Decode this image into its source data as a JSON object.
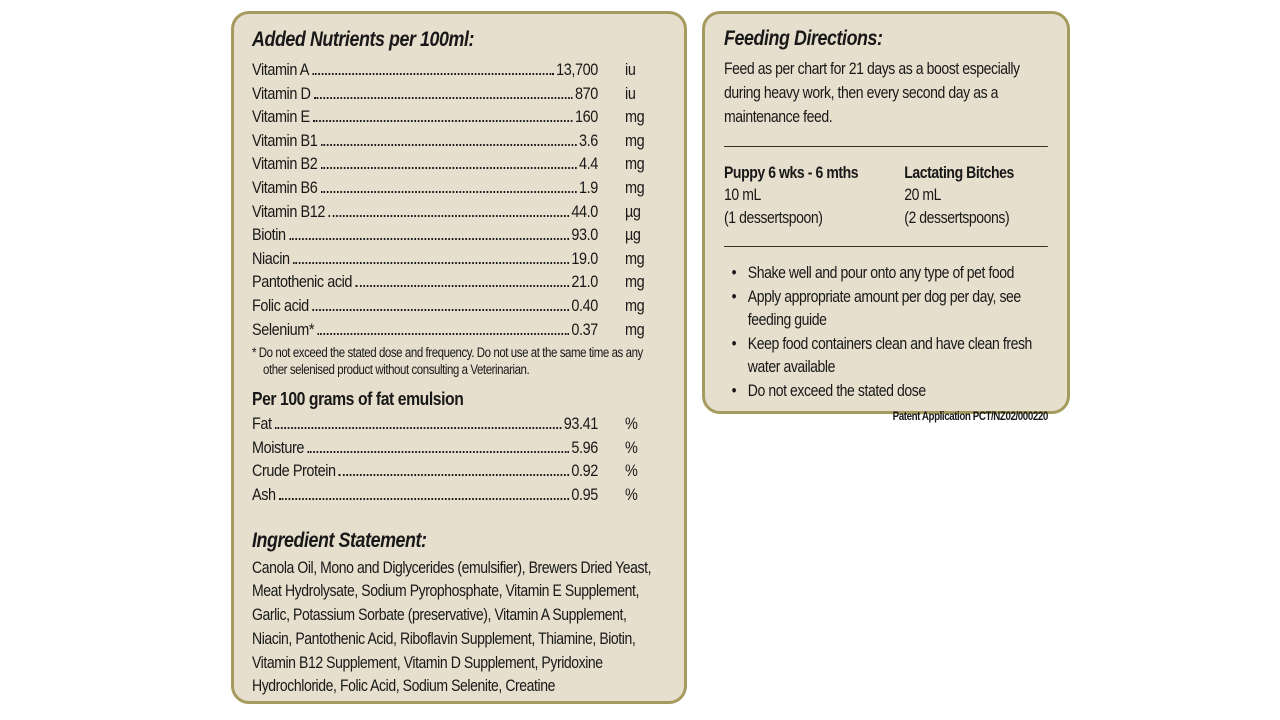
{
  "colors": {
    "page_bg": "#ffffff",
    "panel_bg": "#e6dfcd",
    "panel_border": "#a69b5f",
    "text": "#181818",
    "rule": "#35321f"
  },
  "nutrition_panel": {
    "title": "Added Nutrients per 100ml:",
    "nutrients": [
      {
        "name": "Vitamin A",
        "value": "13,700",
        "unit": "iu"
      },
      {
        "name": "Vitamin D",
        "value": "870",
        "unit": "iu"
      },
      {
        "name": "Vitamin E",
        "value": "160",
        "unit": "mg"
      },
      {
        "name": "Vitamin B1",
        "value": "3.6",
        "unit": "mg"
      },
      {
        "name": "Vitamin B2",
        "value": "4.4",
        "unit": "mg"
      },
      {
        "name": "Vitamin B6",
        "value": "1.9",
        "unit": "mg"
      },
      {
        "name": "Vitamin B12",
        "value": "44.0",
        "unit": "µg"
      },
      {
        "name": "Biotin",
        "value": "93.0",
        "unit": "µg"
      },
      {
        "name": "Niacin",
        "value": "19.0",
        "unit": "mg"
      },
      {
        "name": "Pantothenic acid",
        "value": "21.0",
        "unit": "mg"
      },
      {
        "name": "Folic acid",
        "value": "0.40",
        "unit": "mg"
      },
      {
        "name": "Selenium*",
        "value": "0.37",
        "unit": "mg"
      }
    ],
    "footnote": "* Do not exceed the stated dose and frequency. Do not use at the same time as any other selenised product without consulting a Veterinarian.",
    "emulsion_title": "Per 100 grams of fat emulsion",
    "emulsion_rows": [
      {
        "name": "Fat",
        "value": "93.41",
        "unit": "%"
      },
      {
        "name": "Moisture",
        "value": "5.96",
        "unit": "%"
      },
      {
        "name": "Crude Protein",
        "value": "0.92",
        "unit": "%"
      },
      {
        "name": "Ash",
        "value": "0.95",
        "unit": "%"
      }
    ],
    "ingredient_title": "Ingredient Statement:",
    "ingredients": "Canola Oil, Mono and Diglycerides (emulsifier), Brewers Dried Yeast, Meat Hydrolysate, Sodium Pyrophosphate, Vitamin E Supplement, Garlic, Potassium Sorbate (preservative), Vitamin A Supplement, Niacin, Pantothenic Acid, Riboflavin Supplement, Thiamine, Biotin, Vitamin B12 Supplement, Vitamin D Supplement, Pyridoxine Hydrochloride, Folic Acid, Sodium Selenite, Creatine"
  },
  "feeding_panel": {
    "title": "Feeding Directions:",
    "intro": "Feed as per chart for 21 days as a boost especially during heavy work, then every second day as a maintenance feed.",
    "dose_columns": [
      {
        "heading": "Puppy 6 wks - 6 mths",
        "amount": "10 mL",
        "spoon": "(1 dessertspoon)"
      },
      {
        "heading": "Lactating Bitches",
        "amount": "20 mL",
        "spoon": "(2 dessertspoons)"
      }
    ],
    "bullet_glyph": "•",
    "bullets": [
      "Shake well and pour onto any type of pet food",
      "Apply appropriate amount per dog per day, see feeding guide",
      "Keep food containers clean and have clean fresh water available",
      "Do not exceed the stated dose"
    ],
    "patent": "Patent Application PCT/NZ02/000220"
  }
}
